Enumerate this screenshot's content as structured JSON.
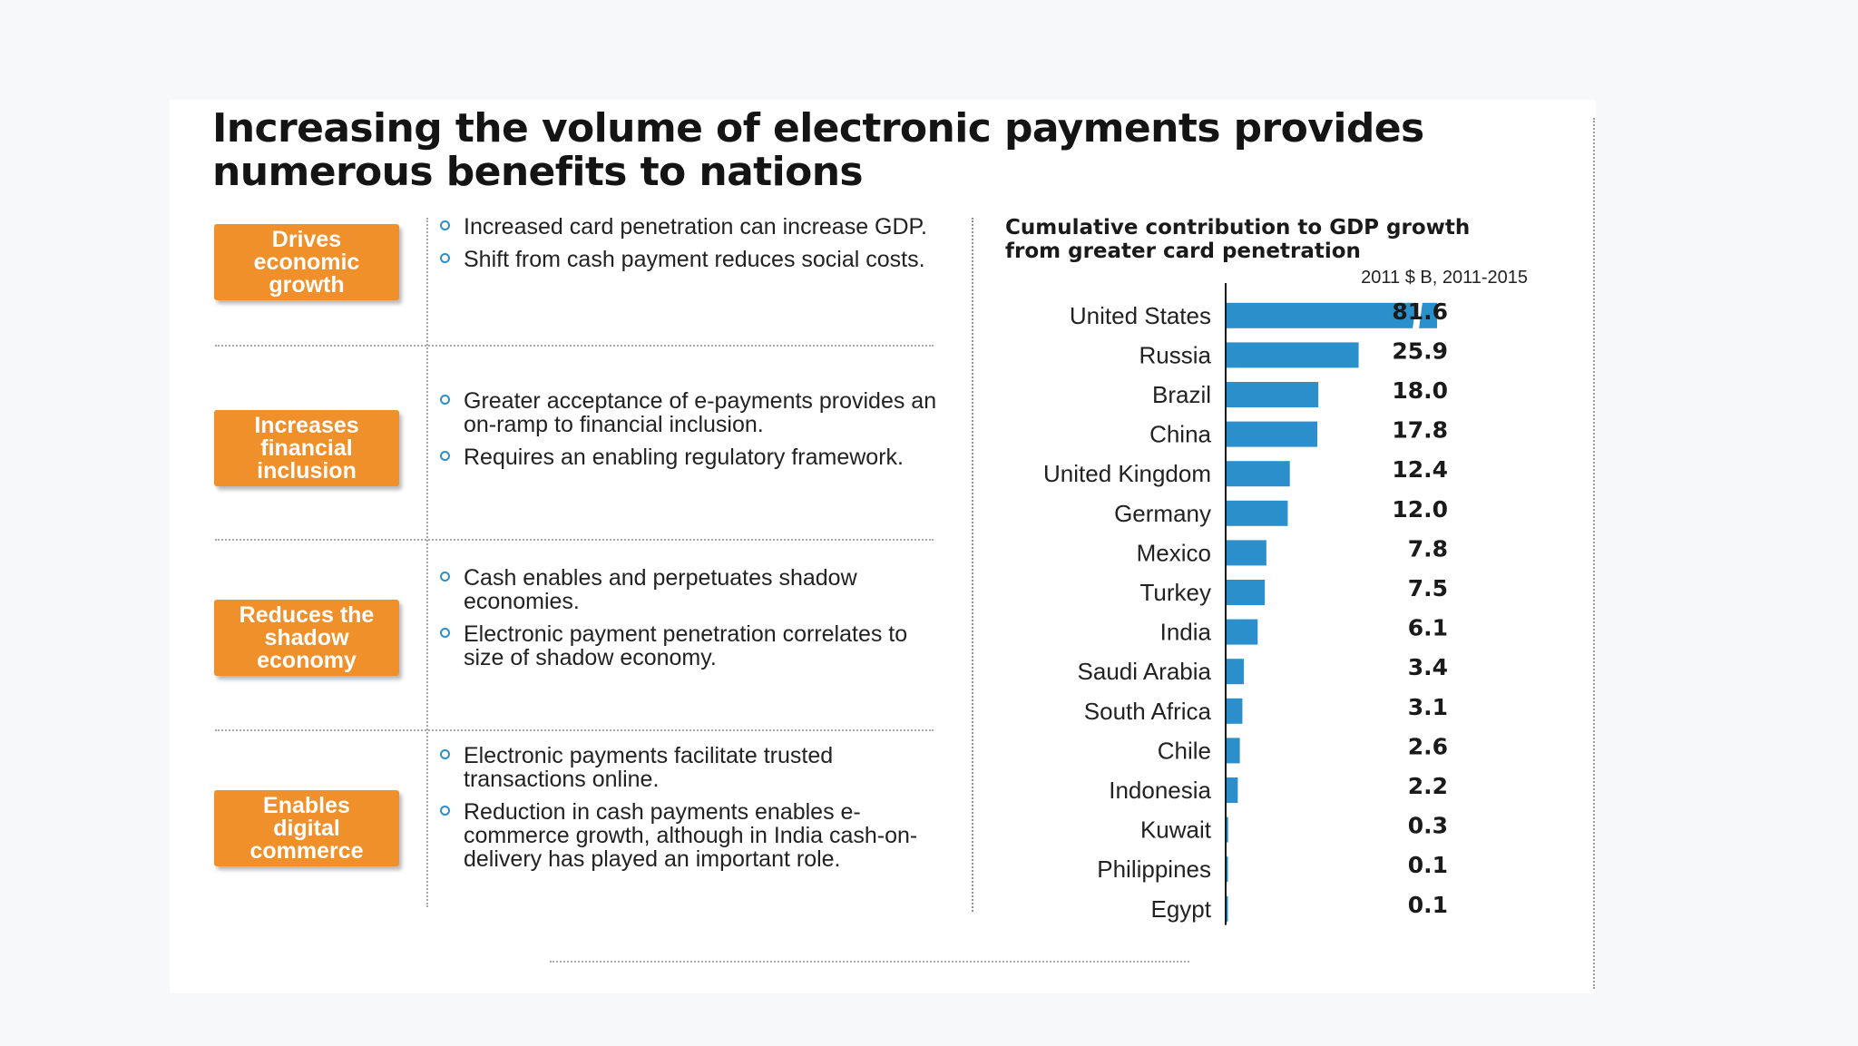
{
  "title": "Increasing the volume of electronic payments provides numerous benefits to nations",
  "benefits": [
    {
      "label": "Drives\neconomic\ngrowth",
      "bullets": [
        "Increased card penetration can increase GDP.",
        "Shift from cash payment reduces social costs."
      ]
    },
    {
      "label": "Increases\nfinancial\ninclusion",
      "bullets": [
        "Greater acceptance of e-payments provides an on-ramp to financial inclusion.",
        "Requires an enabling regulatory framework."
      ]
    },
    {
      "label": "Reduces the\nshadow\neconomy",
      "bullets": [
        "Cash enables and perpetuates shadow economies.",
        "Electronic payment penetration correlates to size of shadow economy."
      ]
    },
    {
      "label": "Enables\ndigital\ncommerce",
      "bullets": [
        "Electronic payments facilitate trusted transactions online.",
        "Reduction in cash payments enables e-commerce growth, although in India cash-on-delivery has played an important role."
      ]
    }
  ],
  "colors": {
    "badge": "#f0902a",
    "bar": "#2a8fca",
    "bullet": "#2a8fca"
  },
  "chart_data": {
    "type": "bar",
    "orientation": "horizontal",
    "title": "Cumulative contribution to GDP growth from greater card penetration",
    "unit_label": "2011 $ B, 2011-2015",
    "categories": [
      "United States",
      "Russia",
      "Brazil",
      "China",
      "United Kingdom",
      "Germany",
      "Mexico",
      "Turkey",
      "India",
      "Saudi Arabia",
      "South Africa",
      "Chile",
      "Indonesia",
      "Kuwait",
      "Philippines",
      "Egypt"
    ],
    "values": [
      81.6,
      25.9,
      18.0,
      17.8,
      12.4,
      12.0,
      7.8,
      7.5,
      6.1,
      3.4,
      3.1,
      2.6,
      2.2,
      0.3,
      0.1,
      0.1
    ],
    "value_labels": [
      "81.6",
      "25.9",
      "18.0",
      "17.8",
      "12.4",
      "12.0",
      "7.8",
      "7.5",
      "6.1",
      "3.4",
      "3.1",
      "2.6",
      "2.2",
      "0.3",
      "0.1",
      "0.1"
    ],
    "axis_break": "United States bar is truncated with a break mark",
    "grid": false,
    "legend": "none"
  }
}
